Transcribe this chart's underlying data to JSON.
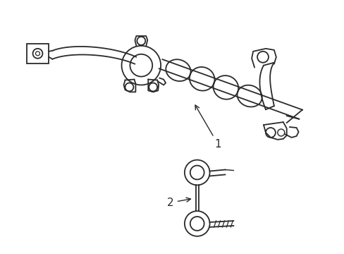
{
  "bg_color": "#ffffff",
  "line_color": "#2a2a2a",
  "line_width": 1.3,
  "label1": "1",
  "label2": "2",
  "figsize": [
    4.89,
    3.6
  ],
  "dpi": 100
}
